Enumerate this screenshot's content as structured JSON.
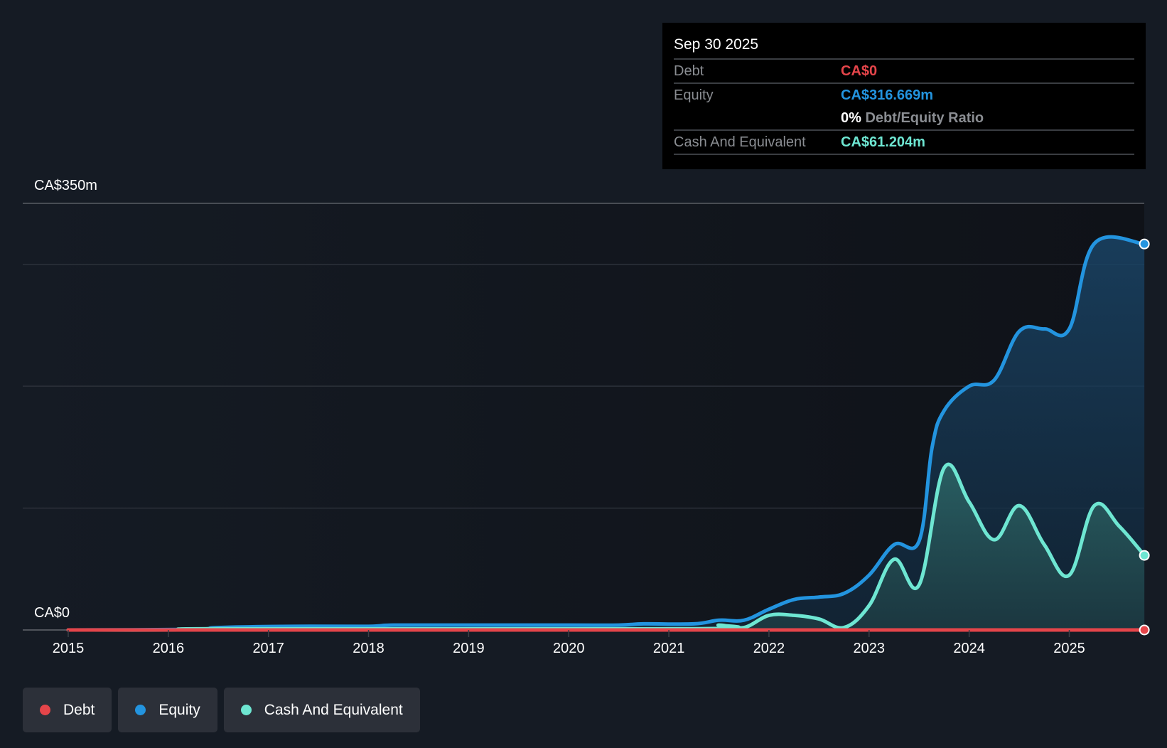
{
  "chart_data": {
    "type": "area",
    "title": "",
    "xlabel": "",
    "ylabel": "",
    "ylim": [
      0,
      350
    ],
    "xlim": [
      2015,
      2025.75
    ],
    "y_tick_labels": [
      "CA$350m",
      "CA$0"
    ],
    "gridlines": [
      0,
      100,
      200,
      300,
      350
    ],
    "x_ticks": [
      "2015",
      "2016",
      "2017",
      "2018",
      "2019",
      "2020",
      "2021",
      "2022",
      "2023",
      "2024",
      "2025"
    ],
    "legend_position": "bottom-left",
    "series": [
      {
        "name": "Debt",
        "color": "#e5454a",
        "x": [
          2015,
          2025.75
        ],
        "values": [
          0,
          0
        ]
      },
      {
        "name": "Equity",
        "color": "#2394df",
        "x": [
          2015,
          2016.25,
          2016.5,
          2017.25,
          2018,
          2018.25,
          2019,
          2020,
          2020.5,
          2020.75,
          2021.25,
          2021.5,
          2021.75,
          2022,
          2022.25,
          2022.5,
          2022.75,
          2023,
          2023.25,
          2023.5,
          2023.63,
          2023.75,
          2024,
          2024.25,
          2024.5,
          2024.75,
          2025,
          2025.25,
          2025.75
        ],
        "values": [
          0,
          0.5,
          2,
          3,
          3,
          4,
          4,
          4,
          4,
          5,
          5,
          8,
          8,
          17,
          25,
          27,
          30,
          45,
          70,
          73,
          150,
          180,
          200,
          205,
          245,
          247,
          247,
          317,
          316.669
        ]
      },
      {
        "name": "Cash And Equivalent",
        "color": "#6ee6d2",
        "x": [
          2015,
          2016.25,
          2016.5,
          2021.25,
          2021.5,
          2021.75,
          2022,
          2022.25,
          2022.5,
          2022.75,
          2023,
          2023.25,
          2023.5,
          2023.75,
          2024,
          2024.25,
          2024.5,
          2024.75,
          2025,
          2025.25,
          2025.5,
          2025.75
        ],
        "values": [
          0,
          0,
          1,
          1,
          4,
          2,
          12,
          12,
          9,
          2,
          20,
          58,
          37,
          133,
          105,
          74,
          102,
          70,
          45,
          102,
          85,
          61.204
        ]
      }
    ]
  },
  "tooltip": {
    "date": "Sep 30 2025",
    "debt_label": "Debt",
    "debt_value": "CA$0",
    "equity_label": "Equity",
    "equity_value": "CA$316.669m",
    "ratio_value": "0%",
    "ratio_label": "Debt/Equity Ratio",
    "cash_label": "Cash And Equivalent",
    "cash_value": "CA$61.204m"
  },
  "legend": [
    {
      "label": "Debt",
      "color": "#e5454a"
    },
    {
      "label": "Equity",
      "color": "#2394df"
    },
    {
      "label": "Cash And Equivalent",
      "color": "#6ee6d2"
    }
  ]
}
